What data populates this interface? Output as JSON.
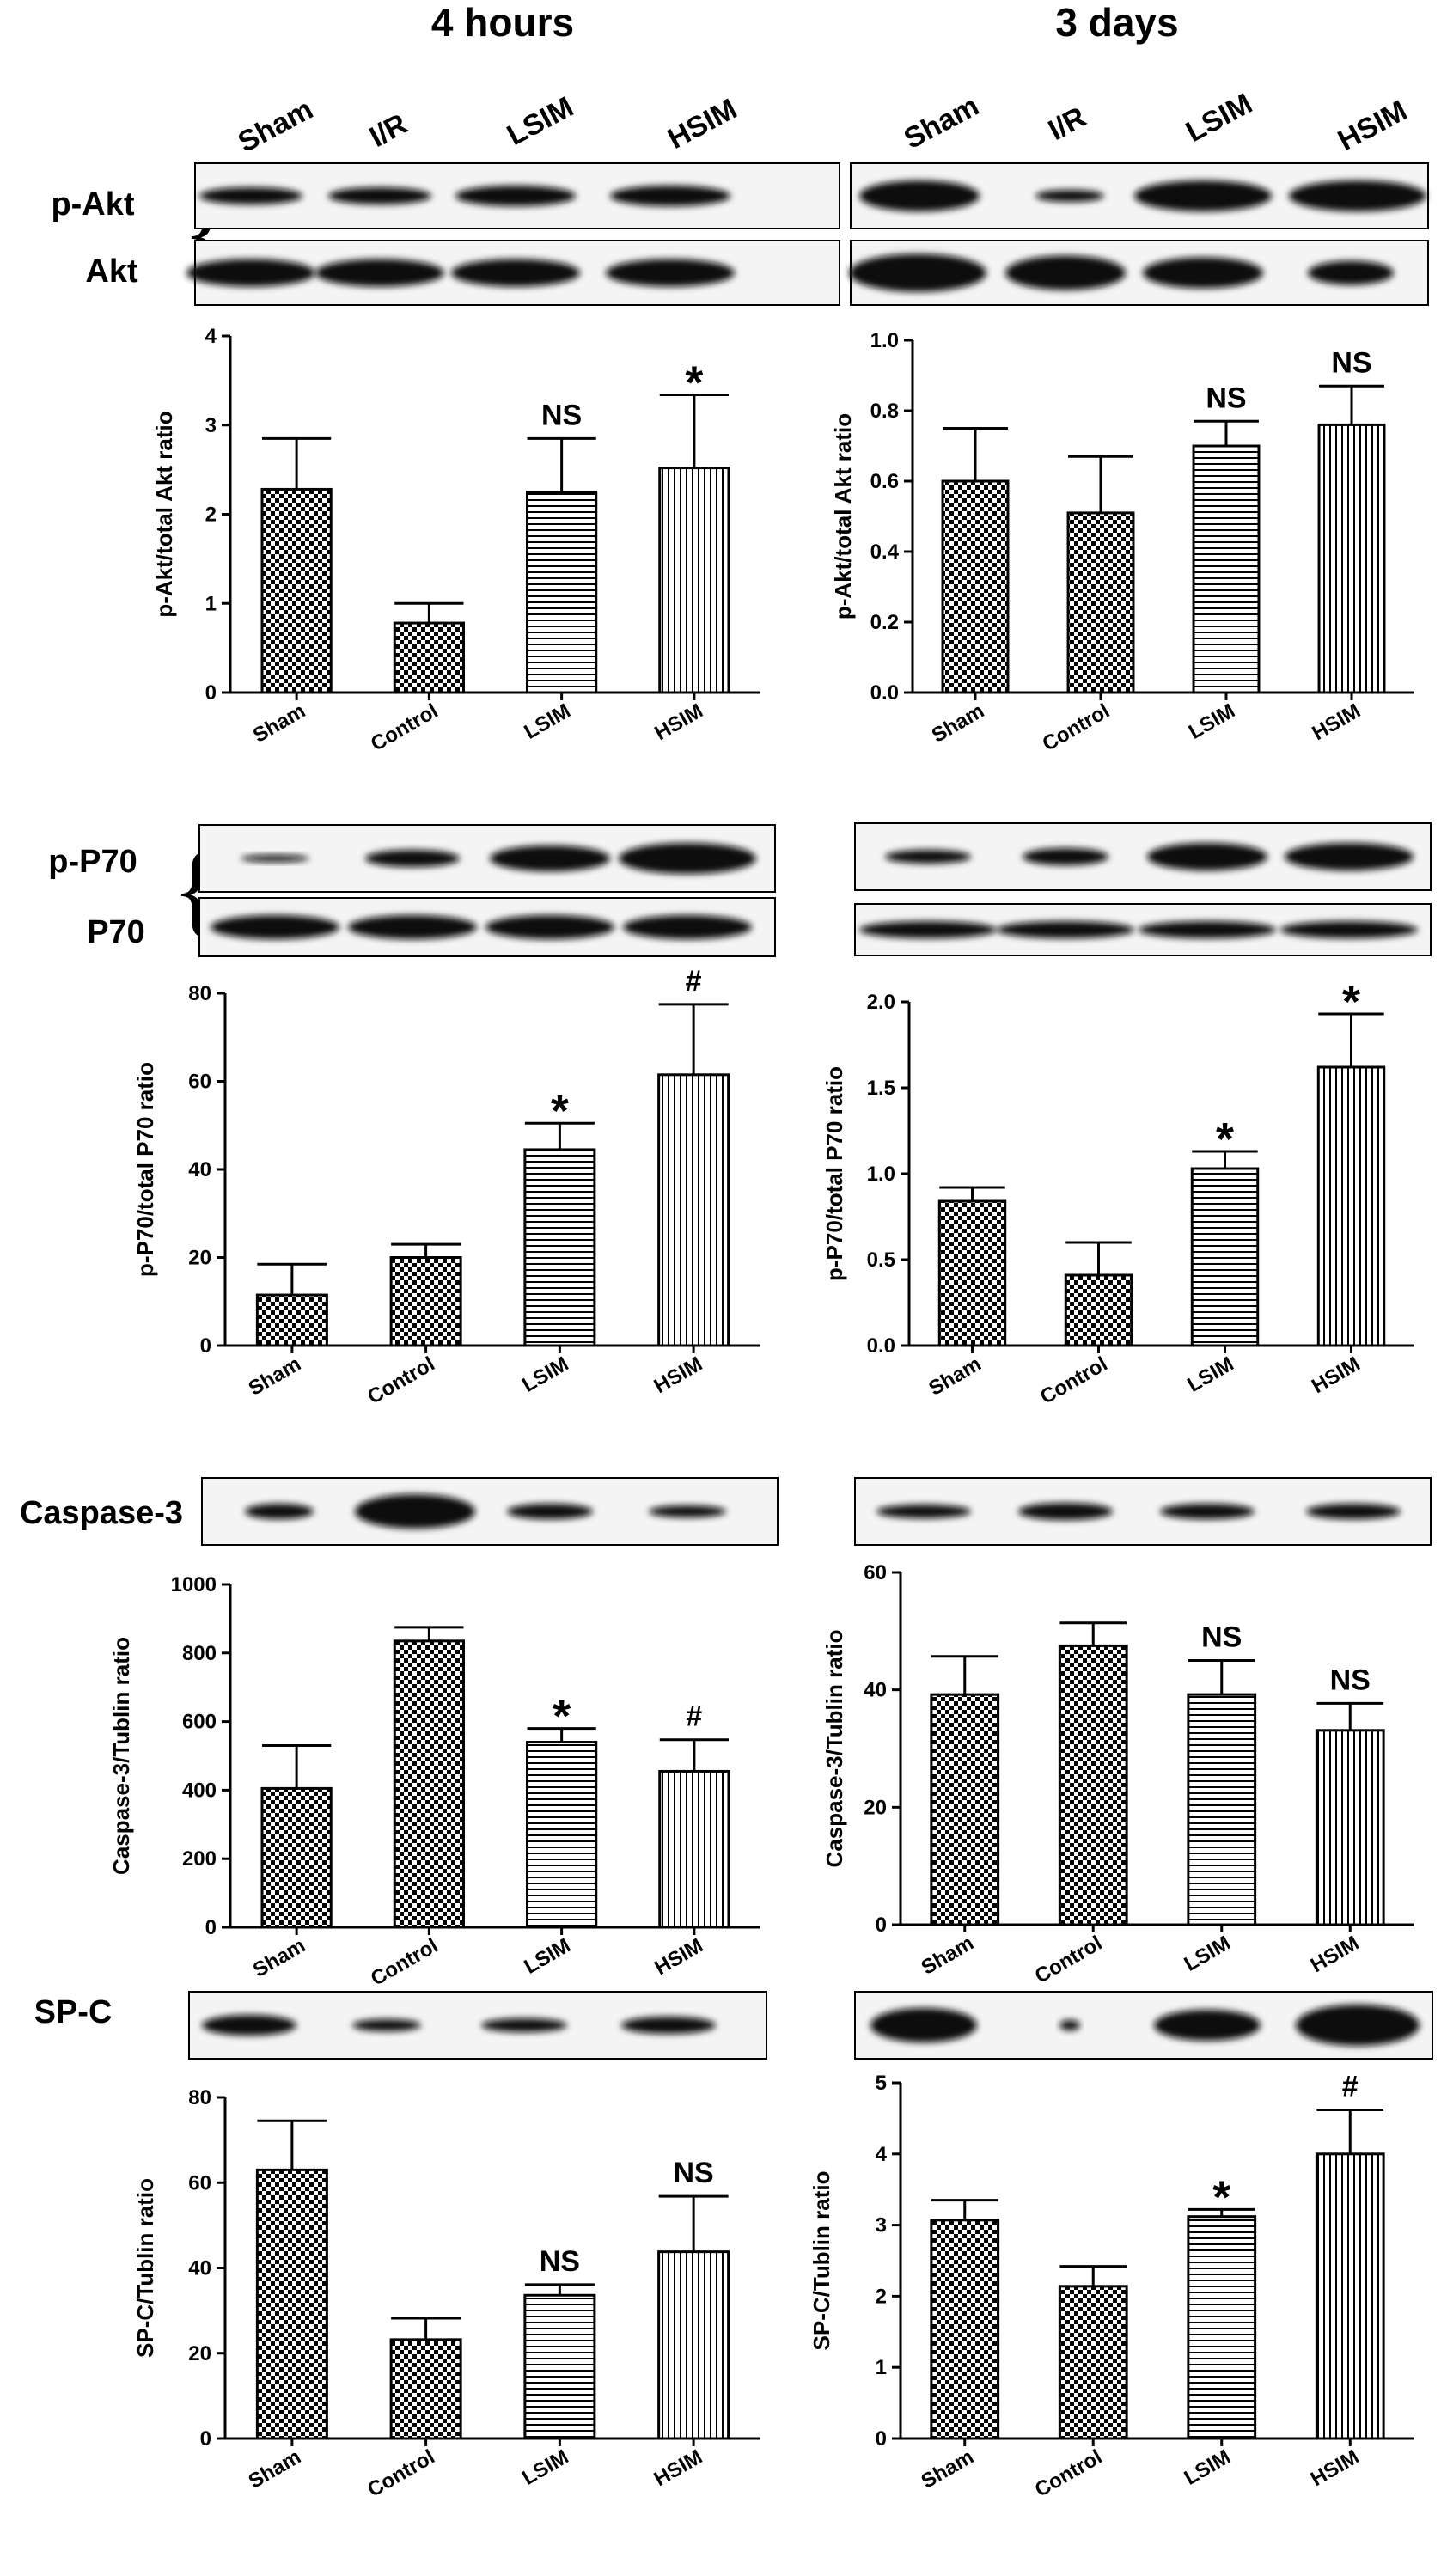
{
  "headers": {
    "left": "4 hours",
    "right": "3 days"
  },
  "lane_labels": [
    "Sham",
    "I/R",
    "LSIM",
    "HSIM"
  ],
  "blot_labels": {
    "pakt": "p-Akt",
    "akt": "Akt",
    "pp70": "p-P70",
    "p70": "P70",
    "casp": "Caspase-3",
    "spc": "SP-C"
  },
  "chart_data": [
    {
      "type": "bar",
      "id": "akt_4h",
      "categories": [
        "Sham",
        "Control",
        "LSIM",
        "HSIM"
      ],
      "values": [
        2.28,
        0.78,
        2.25,
        2.52
      ],
      "errors": [
        0.57,
        0.22,
        0.6,
        0.82
      ],
      "marks": [
        "",
        "",
        "NS",
        "*"
      ],
      "ylabel": "p-Akt/total Akt ratio",
      "ylim": [
        0,
        4
      ],
      "yticks": [
        0,
        1,
        2,
        3,
        4
      ],
      "ytick_labels": [
        "0",
        "1",
        "2",
        "3",
        "4"
      ]
    },
    {
      "type": "bar",
      "id": "akt_3d",
      "categories": [
        "Sham",
        "Control",
        "LSIM",
        "HSIM"
      ],
      "values": [
        0.6,
        0.51,
        0.7,
        0.76
      ],
      "errors": [
        0.15,
        0.16,
        0.07,
        0.11
      ],
      "marks": [
        "",
        "",
        "NS",
        "NS"
      ],
      "ylabel": "p-Akt/total Akt ratio",
      "ylim": [
        0,
        1.0
      ],
      "yticks": [
        0,
        0.2,
        0.4,
        0.6,
        0.8,
        1.0
      ],
      "ytick_labels": [
        "0.0",
        "0.2",
        "0.4",
        "0.6",
        "0.8",
        "1.0"
      ]
    },
    {
      "type": "bar",
      "id": "p70_4h",
      "categories": [
        "Sham",
        "Control",
        "LSIM",
        "HSIM"
      ],
      "values": [
        11.5,
        20.0,
        44.5,
        61.5
      ],
      "errors": [
        7.0,
        3.0,
        6.0,
        16.0
      ],
      "marks": [
        "",
        "",
        "*",
        "#"
      ],
      "ylabel": "p-P70/total P70 ratio",
      "ylim": [
        0,
        80
      ],
      "yticks": [
        0,
        20,
        40,
        60,
        80
      ],
      "ytick_labels": [
        "0",
        "20",
        "40",
        "60",
        "80"
      ]
    },
    {
      "type": "bar",
      "id": "p70_3d",
      "categories": [
        "Sham",
        "Control",
        "LSIM",
        "HSIM"
      ],
      "values": [
        0.84,
        0.41,
        1.03,
        1.62
      ],
      "errors": [
        0.08,
        0.19,
        0.1,
        0.31
      ],
      "marks": [
        "",
        "",
        "*",
        "*"
      ],
      "ylabel": "p-P70/total P70 ratio",
      "ylim": [
        0,
        2.0
      ],
      "yticks": [
        0,
        0.5,
        1.0,
        1.5,
        2.0
      ],
      "ytick_labels": [
        "0.0",
        "0.5",
        "1.0",
        "1.5",
        "2.0"
      ]
    },
    {
      "type": "bar",
      "id": "casp_4h",
      "categories": [
        "Sham",
        "Control",
        "LSIM",
        "HSIM"
      ],
      "values": [
        405,
        835,
        540,
        455
      ],
      "errors": [
        125,
        40,
        40,
        92
      ],
      "marks": [
        "",
        "",
        "*",
        "#"
      ],
      "ylabel": "Caspase-3/Tublin ratio",
      "ylim": [
        0,
        1000
      ],
      "yticks": [
        0,
        200,
        400,
        600,
        800,
        1000
      ],
      "ytick_labels": [
        "0",
        "200",
        "400",
        "600",
        "800",
        "1000"
      ]
    },
    {
      "type": "bar",
      "id": "casp_3d",
      "categories": [
        "Sham",
        "Control",
        "LSIM",
        "HSIM"
      ],
      "values": [
        39.2,
        47.5,
        39.2,
        33.1
      ],
      "errors": [
        6.5,
        3.9,
        5.8,
        4.6
      ],
      "marks": [
        "",
        "",
        "NS",
        "NS"
      ],
      "ylabel": "Caspase-3/Tublin ratio",
      "ylim": [
        0,
        60
      ],
      "yticks": [
        0,
        20,
        40,
        60
      ],
      "ytick_labels": [
        "0",
        "20",
        "40",
        "60"
      ]
    },
    {
      "type": "bar",
      "id": "spc_4h",
      "categories": [
        "Sham",
        "Control",
        "LSIM",
        "HSIM"
      ],
      "values": [
        63.0,
        23.2,
        33.6,
        43.8
      ],
      "errors": [
        11.5,
        5.0,
        2.5,
        13.0
      ],
      "marks": [
        "",
        "",
        "NS",
        "NS"
      ],
      "ylabel": "SP-C/Tublin ratio",
      "ylim": [
        0,
        80
      ],
      "yticks": [
        0,
        20,
        40,
        60,
        80
      ],
      "ytick_labels": [
        "0",
        "20",
        "40",
        "60",
        "80"
      ]
    },
    {
      "type": "bar",
      "id": "spc_3d",
      "categories": [
        "Sham",
        "Control",
        "LSIM",
        "HSIM"
      ],
      "values": [
        3.07,
        2.14,
        3.12,
        4.0
      ],
      "errors": [
        0.28,
        0.28,
        0.1,
        0.62
      ],
      "marks": [
        "",
        "",
        "*",
        "#"
      ],
      "ylabel": "SP-C/Tublin ratio",
      "ylim": [
        0,
        5
      ],
      "yticks": [
        0,
        1,
        2,
        3,
        4,
        5
      ],
      "ytick_labels": [
        "0",
        "1",
        "2",
        "3",
        "4",
        "5"
      ]
    }
  ]
}
